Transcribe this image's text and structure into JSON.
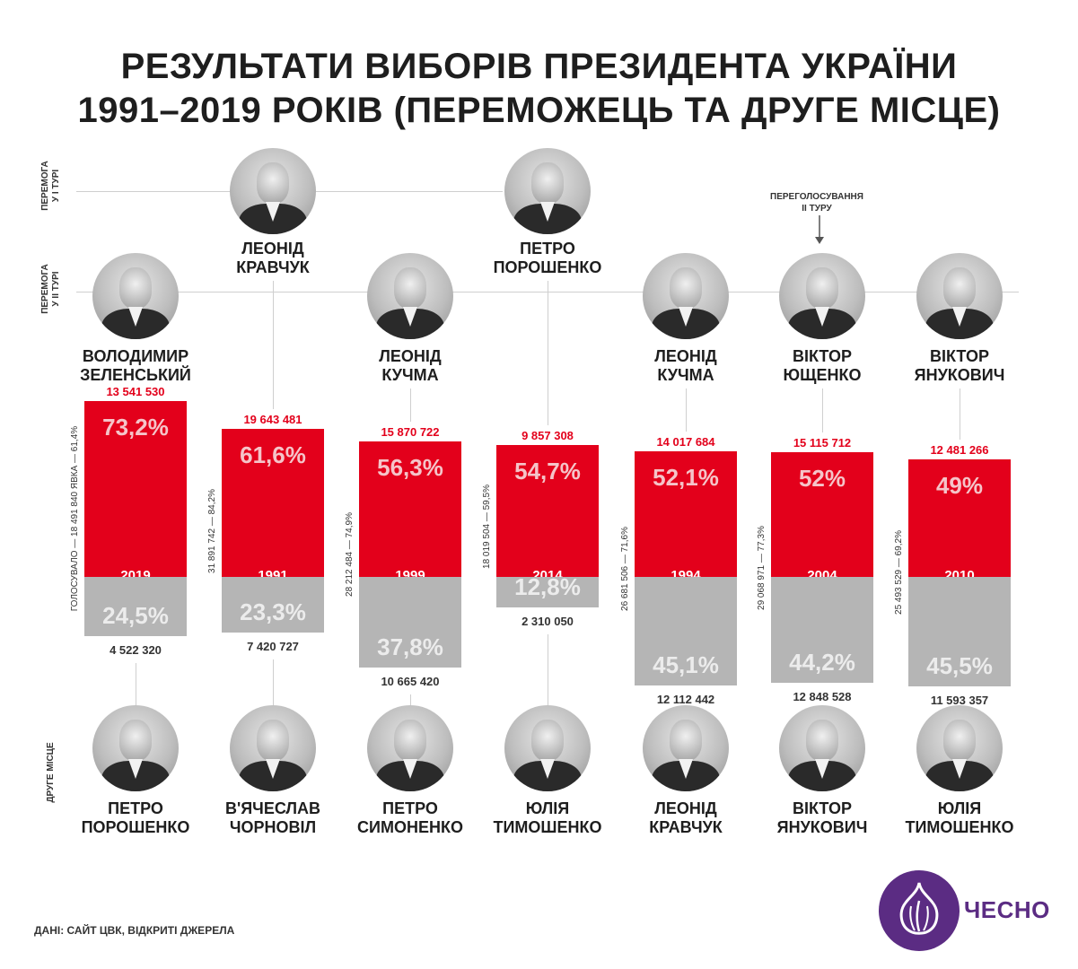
{
  "title_line1": "РЕЗУЛЬТАТИ ВИБОРІВ ПРЕЗИДЕНТА УКРАЇНИ",
  "title_line2": "1991–2019 РОКІВ (ПЕРЕМОЖЕЦЬ ТА ДРУГЕ МІСЦЕ)",
  "row_labels": {
    "first_round": "Перемога\nу I турі",
    "second_round": "Перемога\nу II турі",
    "second_place": "Друге місце"
  },
  "revote_note": "Переголосування\nII туру",
  "source": "ДАНІ: САЙТ ЦВК, ВІДКРИТІ ДЖЕРЕЛА",
  "logo_text": "ЧЕСНО",
  "colors": {
    "winner": "#e3001b",
    "second": "#b5b5b5",
    "brand": "#5b2c83"
  },
  "chart_data": {
    "type": "bar",
    "categories": [
      "2019",
      "1991",
      "1999",
      "2014",
      "1994",
      "2004",
      "2010"
    ],
    "series": [
      {
        "values": [
          73.2,
          61.6,
          56.3,
          54.7,
          52.1,
          52,
          49
        ]
      },
      {
        "values": [
          24.5,
          23.3,
          37.8,
          12.8,
          45.1,
          44.2,
          45.5
        ]
      }
    ],
    "elections": [
      {
        "year": "2019",
        "win_round": "2",
        "winner_line1": "Володимир",
        "winner_line2": "Зеленський",
        "winner_pct": 73.2,
        "winner_pct_label": "73,2%",
        "winner_votes": "13 541 530",
        "second_line1": "Петро",
        "second_line2": "Порошенко",
        "second_pct": 24.5,
        "second_pct_label": "24,5%",
        "second_votes": "4 522 320",
        "turnout": "ГОЛОСУВАЛО — 18 491 840  ЯВКА — 61,4%"
      },
      {
        "year": "1991",
        "win_round": "1",
        "winner_line1": "Леонід",
        "winner_line2": "Кравчук",
        "winner_pct": 61.6,
        "winner_pct_label": "61,6%",
        "winner_votes": "19 643 481",
        "second_line1": "В'ячеслав",
        "second_line2": "Чорновіл",
        "second_pct": 23.3,
        "second_pct_label": "23,3%",
        "second_votes": "7 420 727",
        "turnout": "31 891 742 — 84,2%"
      },
      {
        "year": "1999",
        "win_round": "2",
        "winner_line1": "Леонід",
        "winner_line2": "Кучма",
        "winner_pct": 56.3,
        "winner_pct_label": "56,3%",
        "winner_votes": "15 870 722",
        "second_line1": "Петро",
        "second_line2": "Симоненко",
        "second_pct": 37.8,
        "second_pct_label": "37,8%",
        "second_votes": "10 665 420",
        "turnout": "28 212 484 — 74,9%"
      },
      {
        "year": "2014",
        "win_round": "1",
        "winner_line1": "Петро",
        "winner_line2": "Порошенко",
        "winner_pct": 54.7,
        "winner_pct_label": "54,7%",
        "winner_votes": "9 857 308",
        "second_line1": "Юлія",
        "second_line2": "Тимошенко",
        "second_pct": 12.8,
        "second_pct_label": "12,8%",
        "second_votes": "2 310 050",
        "turnout": "18 019 504 — 59,5%"
      },
      {
        "year": "1994",
        "win_round": "2",
        "winner_line1": "Леонід",
        "winner_line2": "Кучма",
        "winner_pct": 52.1,
        "winner_pct_label": "52,1%",
        "winner_votes": "14 017 684",
        "second_line1": "Леонід",
        "second_line2": "Кравчук",
        "second_pct": 45.1,
        "second_pct_label": "45,1%",
        "second_votes": "12 112 442",
        "turnout": "26 681 506 — 71,6%"
      },
      {
        "year": "2004",
        "win_round": "2",
        "winner_line1": "Віктор",
        "winner_line2": "Ющенко",
        "winner_pct": 52,
        "winner_pct_label": "52%",
        "winner_votes": "15 115 712",
        "second_line1": "Віктор",
        "second_line2": "Янукович",
        "second_pct": 44.2,
        "second_pct_label": "44,2%",
        "second_votes": "12 848 528",
        "turnout": "29 068 971 — 77,3%"
      },
      {
        "year": "2010",
        "win_round": "2",
        "winner_line1": "Віктор",
        "winner_line2": "Янукович",
        "winner_pct": 49,
        "winner_pct_label": "49%",
        "winner_votes": "12 481 266",
        "second_line1": "Юлія",
        "second_line2": "Тимошенко",
        "second_pct": 45.5,
        "second_pct_label": "45,5%",
        "second_votes": "11 593 357",
        "turnout": "25 493 529 — 69,2%"
      }
    ]
  }
}
